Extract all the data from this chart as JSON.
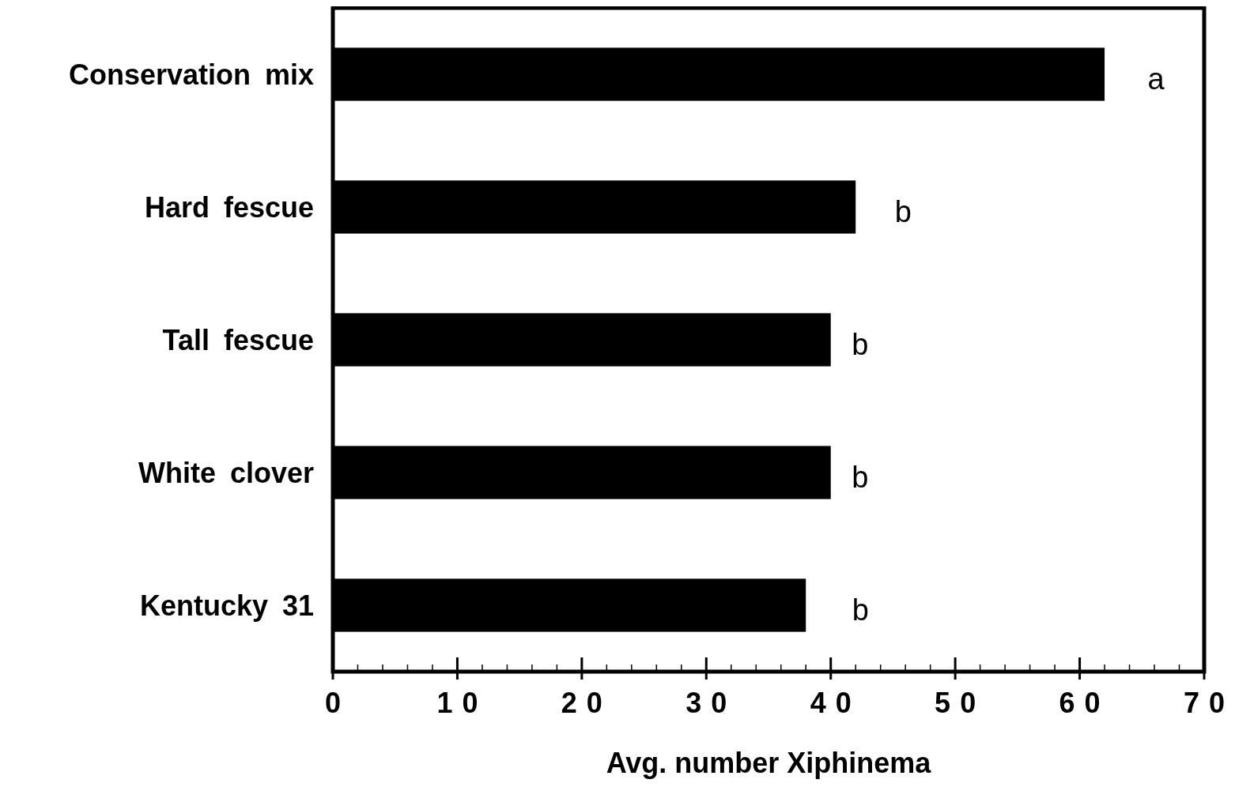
{
  "chart_data": {
    "type": "bar",
    "orientation": "horizontal",
    "xlabel": "Avg. number Xiphinema",
    "categories": [
      "Conservation mix",
      "Hard fescue",
      "Tall fescue",
      "White clover",
      "Kentucky 31"
    ],
    "values": [
      62,
      42,
      40,
      40,
      38
    ],
    "color": "#000000",
    "xlim": [
      0,
      70
    ],
    "xticks": [
      0,
      {
        "value": 2,
        "label": null
      },
      {
        "value": 4,
        "label": null
      },
      {
        "value": 6,
        "label": null
      },
      {
        "value": 8,
        "label": null
      },
      10,
      {
        "value": 12,
        "label": null
      },
      {
        "value": 14,
        "label": null
      },
      {
        "value": 16,
        "label": null
      },
      {
        "value": 18,
        "label": null
      },
      20,
      {
        "value": 22,
        "label": null
      },
      {
        "value": 24,
        "label": null
      },
      {
        "value": 26,
        "label": null
      },
      {
        "value": 28,
        "label": null
      },
      30,
      {
        "value": 32,
        "label": null
      },
      {
        "value": 34,
        "label": null
      },
      {
        "value": 36,
        "label": null
      },
      {
        "value": 38,
        "label": null
      },
      40,
      {
        "value": 42,
        "label": null
      },
      {
        "value": 44,
        "label": null
      },
      {
        "value": 46,
        "label": null
      },
      {
        "value": 48,
        "label": null
      },
      50,
      {
        "value": 52,
        "label": null
      },
      {
        "value": 54,
        "label": null
      },
      {
        "value": 56,
        "label": null
      },
      {
        "value": 58,
        "label": null
      },
      60,
      {
        "value": 62,
        "label": null
      },
      {
        "value": 64,
        "label": null
      },
      {
        "value": 66,
        "label": null
      },
      {
        "value": 68,
        "label": null
      },
      70
    ],
    "annotations": [
      "a",
      "b",
      "b",
      "b",
      "b"
    ],
    "grid": false
  }
}
